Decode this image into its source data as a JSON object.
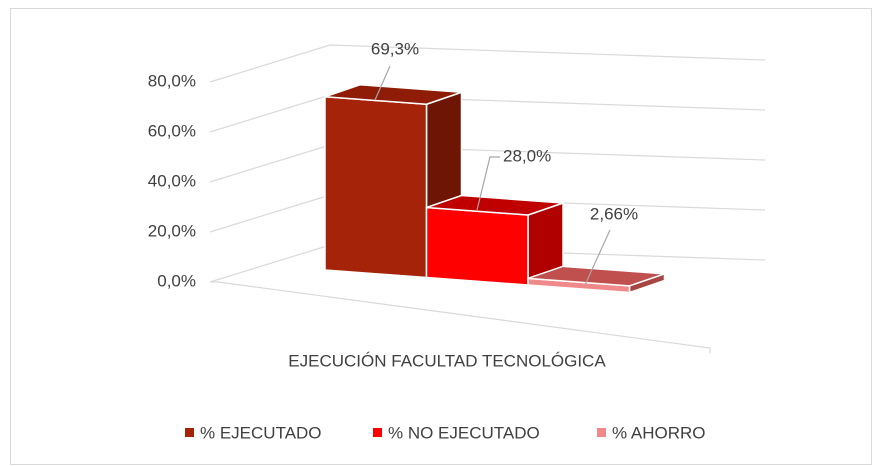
{
  "chart_data": {
    "type": "bar3d",
    "categories": [
      "EJECUCIÓN FACULTAD TECNOLÓGICA"
    ],
    "series": [
      {
        "name": "% EJECUTADO",
        "color": "#a52309",
        "top": "#8e1c06",
        "side": "#6e1506",
        "values": [
          69.3
        ],
        "value_labels": [
          "69,3%"
        ]
      },
      {
        "name": "% NO EJECUTADO",
        "color": "#ff0000",
        "top": "#c00000",
        "side": "#b00000",
        "values": [
          28.0
        ],
        "value_labels": [
          "28,0%"
        ]
      },
      {
        "name": "% AHORRO",
        "color": "#f08a8a",
        "top": "#c0504d",
        "side": "#a84542",
        "values": [
          2.66
        ],
        "value_labels": [
          "2,66%"
        ]
      }
    ],
    "ylim": [
      0,
      80
    ],
    "yticks": [
      {
        "value": 0,
        "label": "0,0%"
      },
      {
        "value": 20,
        "label": "20,0%"
      },
      {
        "value": 40,
        "label": "40,0%"
      },
      {
        "value": 60,
        "label": "60,0%"
      },
      {
        "value": 80,
        "label": "80,0%"
      }
    ],
    "grid": true
  }
}
